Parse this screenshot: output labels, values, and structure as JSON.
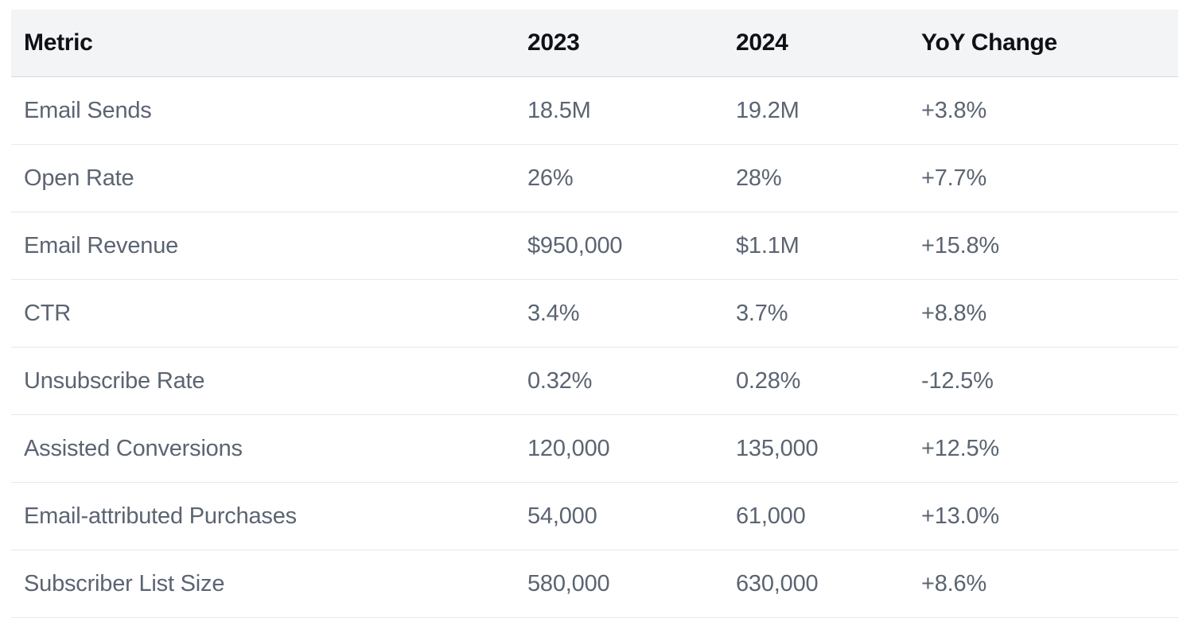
{
  "table": {
    "columns": [
      {
        "label": "Metric"
      },
      {
        "label": "2023"
      },
      {
        "label": "2024"
      },
      {
        "label": "YoY Change"
      }
    ],
    "rows": [
      {
        "cells": [
          "Email Sends",
          "18.5M",
          "19.2M",
          "+3.8%"
        ]
      },
      {
        "cells": [
          "Open Rate",
          "26%",
          "28%",
          "+7.7%"
        ]
      },
      {
        "cells": [
          "Email Revenue",
          "$950,000",
          "$1.1M",
          "+15.8%"
        ]
      },
      {
        "cells": [
          "CTR",
          "3.4%",
          "3.7%",
          "+8.8%"
        ]
      },
      {
        "cells": [
          "Unsubscribe Rate",
          "0.32%",
          "0.28%",
          "-12.5%"
        ]
      },
      {
        "cells": [
          "Assisted Conversions",
          "120,000",
          "135,000",
          "+12.5%"
        ]
      },
      {
        "cells": [
          "Email-attributed Purchases",
          "54,000",
          "61,000",
          "+13.0%"
        ]
      },
      {
        "cells": [
          "Subscriber List Size",
          "580,000",
          "630,000",
          "+8.6%"
        ]
      }
    ],
    "colors": {
      "header_background": "#f3f4f6",
      "header_text": "#0e1116",
      "body_text": "#5b6472",
      "header_border": "#d8dbe0",
      "row_border": "#e7e8eb",
      "page_background": "#ffffff"
    }
  },
  "chart_data": {
    "type": "table",
    "columns": [
      "Metric",
      "2023",
      "2024",
      "YoY Change"
    ],
    "rows": [
      [
        "Email Sends",
        "18.5M",
        "19.2M",
        "+3.8%"
      ],
      [
        "Open Rate",
        "26%",
        "28%",
        "+7.7%"
      ],
      [
        "Email Revenue",
        "$950,000",
        "$1.1M",
        "+15.8%"
      ],
      [
        "CTR",
        "3.4%",
        "3.7%",
        "+8.8%"
      ],
      [
        "Unsubscribe Rate",
        "0.32%",
        "0.28%",
        "-12.5%"
      ],
      [
        "Assisted Conversions",
        "120,000",
        "135,000",
        "+12.5%"
      ],
      [
        "Email-attributed Purchases",
        "54,000",
        "61,000",
        "+13.0%"
      ],
      [
        "Subscriber List Size",
        "580,000",
        "630,000",
        "+8.6%"
      ]
    ],
    "series": [
      {
        "name": "2023",
        "values": [
          18500000,
          0.26,
          950000,
          0.034,
          0.0032,
          120000,
          54000,
          580000
        ]
      },
      {
        "name": "2024",
        "values": [
          19200000,
          0.28,
          1100000,
          0.037,
          0.0028,
          135000,
          61000,
          630000
        ]
      },
      {
        "name": "YoY Change %",
        "values": [
          3.8,
          7.7,
          15.8,
          8.8,
          -12.5,
          12.5,
          13.0,
          8.6
        ]
      }
    ],
    "layout_hints": {
      "header_shaded": true,
      "row_dividers": true,
      "alignment": "left"
    }
  }
}
